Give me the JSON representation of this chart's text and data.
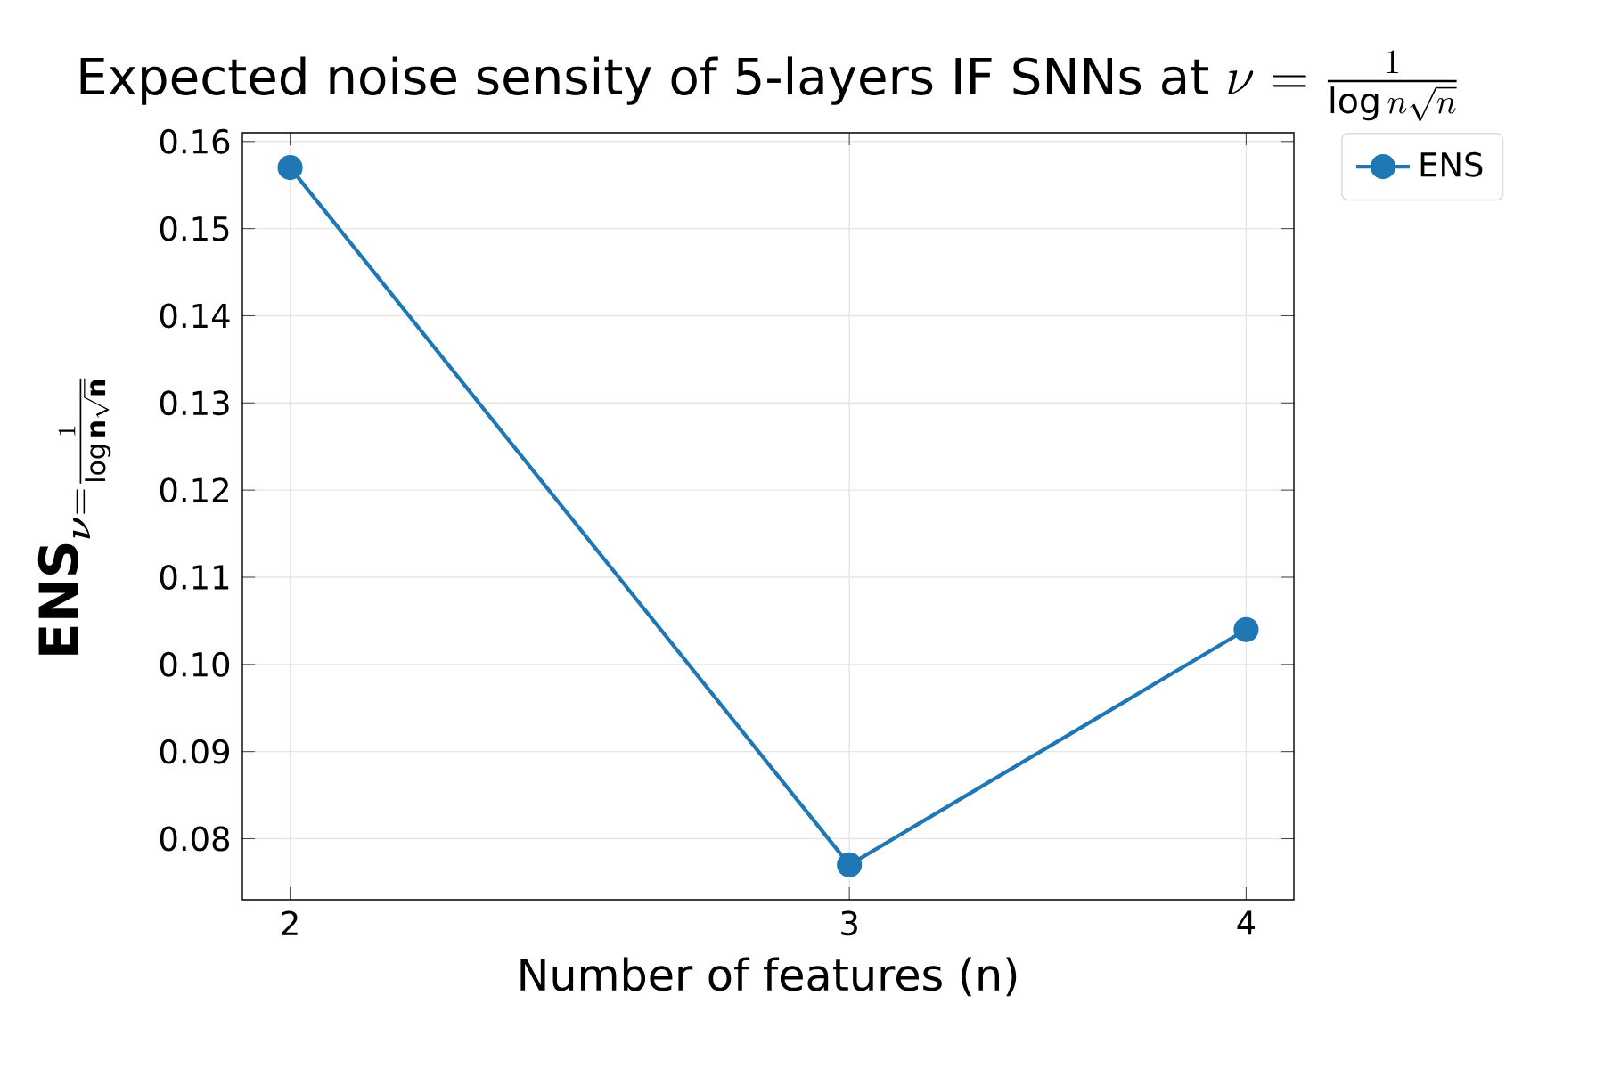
{
  "chart_data": {
    "type": "line",
    "title": "\\text{Expected noise sensity of 5-layers IF SNNs at }\\nu=\\frac{1}{\\log n\\sqrt{n}}",
    "xlabel": "Number of features (n)",
    "ylabel": "\\mathbf{ENS}_{\\boldsymbol{\\nu}=\\frac{1}{\\log\\mathbf{n}\\sqrt{\\mathbf{n}}}}",
    "x": [
      2,
      3,
      4
    ],
    "series": [
      {
        "name": "ENS",
        "color": "#1f77b4",
        "values": [
          0.157,
          0.077,
          0.104
        ]
      }
    ],
    "log": "x",
    "xlim": [
      1.932,
      4.141
    ],
    "ylim": [
      0.073,
      0.161
    ],
    "xticks": [
      2,
      3,
      4
    ],
    "yticks": [
      0.08,
      0.09,
      {
        "value": 0.1,
        "label": "0.10"
      },
      0.11,
      0.12,
      0.13,
      0.14,
      0.15,
      0.16
    ],
    "grid": true,
    "legend": "top right",
    "marker": "circle",
    "line_style": "solid"
  }
}
